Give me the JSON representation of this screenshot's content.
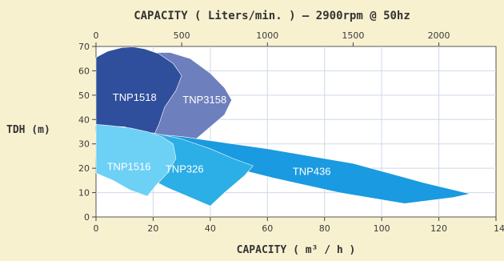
{
  "chart_data": {
    "type": "area",
    "title": "CAPACITY ( Liters/min. ) — 2900rpm @ 50hz",
    "xlabel": "CAPACITY ( m³ / h )",
    "ylabel": "TDH (m)",
    "xlim": [
      0,
      140
    ],
    "ylim": [
      0,
      70
    ],
    "x_ticks": [
      "0",
      "20",
      "40",
      "60",
      "80",
      "100",
      "120",
      "140"
    ],
    "y_ticks": [
      "0",
      "10",
      "20",
      "30",
      "40",
      "50",
      "60",
      "70"
    ],
    "top_axis": {
      "unit": "Liters/min.",
      "ticks": [
        "0",
        "500",
        "1000",
        "1500",
        "2000"
      ],
      "values": [
        0,
        500,
        1000,
        1500,
        2000
      ]
    },
    "grid": true,
    "series": [
      {
        "name": "TNP3158",
        "color": "#6e7fbd",
        "label_at": [
          38,
          48
        ],
        "points": [
          [
            0,
            65
          ],
          [
            10,
            66.5
          ],
          [
            18,
            67.5
          ],
          [
            26,
            67.5
          ],
          [
            33,
            65
          ],
          [
            40,
            59
          ],
          [
            45,
            53
          ],
          [
            47.5,
            48
          ],
          [
            45,
            42
          ],
          [
            39,
            36
          ],
          [
            33,
            30
          ],
          [
            28,
            30
          ],
          [
            18,
            36
          ],
          [
            6,
            37.5
          ],
          [
            0,
            37.5
          ]
        ]
      },
      {
        "name": "TNP1518",
        "color": "#2f4f9c",
        "label_at": [
          13.5,
          49
        ],
        "points": [
          [
            0,
            65.5
          ],
          [
            4,
            68
          ],
          [
            9,
            69.5
          ],
          [
            13,
            69.8
          ],
          [
            17,
            69
          ],
          [
            22,
            67
          ],
          [
            27,
            63
          ],
          [
            30,
            58
          ],
          [
            28,
            52
          ],
          [
            24,
            45
          ],
          [
            22,
            38
          ],
          [
            20,
            33
          ],
          [
            17,
            34
          ],
          [
            10,
            37
          ],
          [
            0,
            37.5
          ]
        ]
      },
      {
        "name": "TNP436",
        "color": "#1a9ae0",
        "label_at": [
          75.5,
          18.5
        ],
        "points": [
          [
            0,
            35
          ],
          [
            10,
            35
          ],
          [
            30,
            33
          ],
          [
            60,
            28
          ],
          [
            90,
            22
          ],
          [
            115,
            14
          ],
          [
            131,
            9.5
          ],
          [
            125,
            8
          ],
          [
            108,
            5.5
          ],
          [
            85,
            10
          ],
          [
            62,
            16
          ],
          [
            45,
            21
          ],
          [
            30,
            25
          ],
          [
            15,
            29
          ],
          [
            0,
            31
          ]
        ]
      },
      {
        "name": "TNP326",
        "color": "#2caee6",
        "label_at": [
          31,
          19.5
        ],
        "points": [
          [
            0,
            35
          ],
          [
            8,
            35
          ],
          [
            20,
            34.5
          ],
          [
            30,
            32
          ],
          [
            40,
            28
          ],
          [
            48,
            24
          ],
          [
            55,
            21
          ],
          [
            52,
            17
          ],
          [
            45,
            10
          ],
          [
            40,
            4.5
          ],
          [
            33,
            8
          ],
          [
            25,
            12
          ],
          [
            15,
            18
          ],
          [
            5,
            22
          ],
          [
            0,
            24
          ]
        ]
      },
      {
        "name": "TNP1516",
        "color": "#6dd0f5",
        "label_at": [
          11.5,
          20.5
        ],
        "points": [
          [
            0,
            38
          ],
          [
            5,
            37.5
          ],
          [
            12,
            36.5
          ],
          [
            18,
            35
          ],
          [
            23,
            33
          ],
          [
            27,
            30
          ],
          [
            28,
            24
          ],
          [
            25,
            18
          ],
          [
            21,
            13
          ],
          [
            18,
            8.5
          ],
          [
            12,
            11
          ],
          [
            6,
            15
          ],
          [
            0,
            18
          ]
        ]
      }
    ]
  }
}
